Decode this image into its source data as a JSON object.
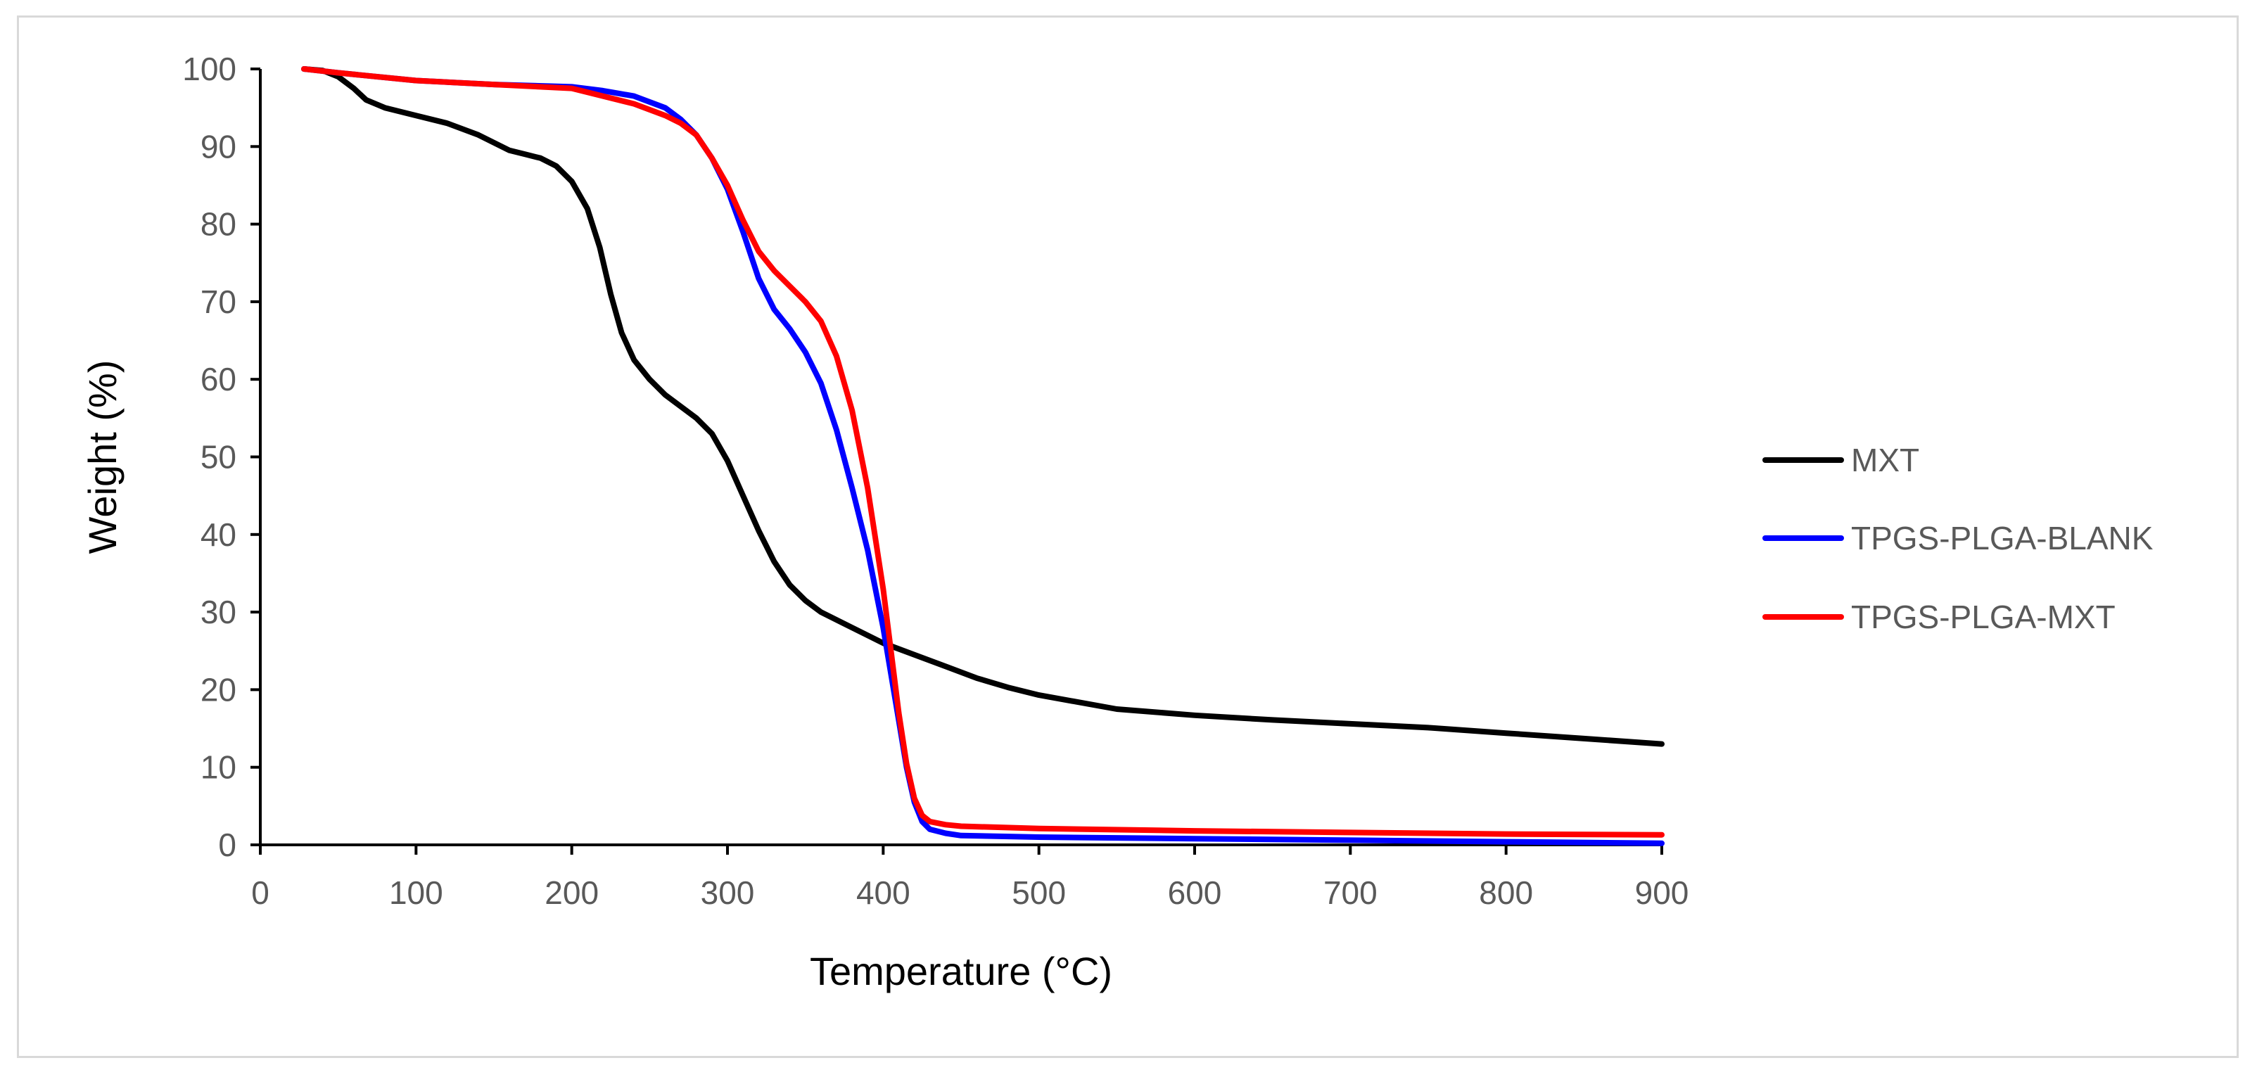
{
  "chart_data": {
    "type": "line",
    "title": "",
    "xlabel": "Temperature (°C)",
    "ylabel": "Weight (%)",
    "xlim": [
      0,
      900
    ],
    "ylim": [
      0,
      100
    ],
    "x_ticks": [
      0,
      100,
      200,
      300,
      400,
      500,
      600,
      700,
      800,
      900
    ],
    "y_ticks": [
      0,
      10,
      20,
      30,
      40,
      50,
      60,
      70,
      80,
      90,
      100
    ],
    "grid": false,
    "legend_position": "right",
    "series": [
      {
        "name": "MXT",
        "color": "#000000",
        "x": [
          28,
          40,
          50,
          60,
          68,
          80,
          100,
          120,
          140,
          160,
          170,
          180,
          190,
          200,
          210,
          218,
          225,
          232,
          240,
          250,
          260,
          270,
          280,
          290,
          300,
          310,
          320,
          330,
          340,
          350,
          360,
          380,
          400,
          420,
          440,
          460,
          480,
          500,
          550,
          600,
          650,
          700,
          750,
          800,
          850,
          900
        ],
        "values": [
          100,
          99.8,
          99,
          97.5,
          96,
          95,
          94,
          93,
          91.5,
          89.5,
          89,
          88.5,
          87.5,
          85.5,
          82,
          77,
          71,
          66,
          62.5,
          60,
          58,
          56.5,
          55,
          53,
          49.5,
          45,
          40.5,
          36.5,
          33.5,
          31.5,
          30,
          28,
          26,
          24.5,
          23,
          21.5,
          20.3,
          19.3,
          17.5,
          16.7,
          16.1,
          15.6,
          15.1,
          14.4,
          13.7,
          13
        ]
      },
      {
        "name": "TPGS-PLGA-BLANK",
        "color": "#0000ff",
        "x": [
          28,
          50,
          100,
          150,
          200,
          220,
          240,
          260,
          270,
          280,
          290,
          300,
          310,
          320,
          330,
          340,
          350,
          360,
          370,
          380,
          390,
          400,
          405,
          410,
          415,
          420,
          425,
          430,
          440,
          450,
          500,
          600,
          700,
          800,
          900
        ],
        "values": [
          100,
          99.5,
          98.5,
          98,
          97.7,
          97.2,
          96.5,
          95,
          93.5,
          91.5,
          88.5,
          84.5,
          79,
          73,
          69,
          66.5,
          63.5,
          59.5,
          53.5,
          46,
          38,
          28,
          22,
          16,
          10,
          5.5,
          3,
          2,
          1.5,
          1.2,
          1,
          0.8,
          0.6,
          0.4,
          0.2
        ]
      },
      {
        "name": "TPGS-PLGA-MXT",
        "color": "#ff0000",
        "x": [
          28,
          50,
          100,
          150,
          200,
          220,
          240,
          260,
          270,
          280,
          290,
          300,
          310,
          320,
          330,
          340,
          350,
          360,
          370,
          380,
          390,
          400,
          405,
          410,
          415,
          420,
          425,
          430,
          440,
          450,
          500,
          600,
          700,
          800,
          900
        ],
        "values": [
          100,
          99.5,
          98.5,
          98,
          97.5,
          96.5,
          95.5,
          94,
          93,
          91.5,
          88.5,
          85,
          80.5,
          76.5,
          74,
          72,
          70,
          67.5,
          63,
          56,
          46,
          33,
          25,
          17,
          10.5,
          6,
          3.8,
          3,
          2.6,
          2.4,
          2.1,
          1.8,
          1.6,
          1.4,
          1.3
        ]
      }
    ]
  }
}
